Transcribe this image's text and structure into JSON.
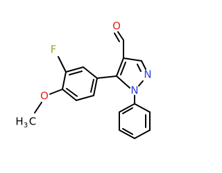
{
  "atoms": {
    "aldehyde_o": "O",
    "fluorine": "F",
    "methoxy_o": "O",
    "n_upper": "N",
    "n_lower": "N",
    "methyl": {
      "h": "H",
      "sub": "3",
      "c": "C"
    }
  }
}
